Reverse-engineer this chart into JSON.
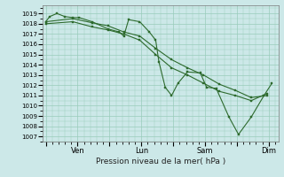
{
  "background_color": "#cce8e8",
  "grid_color": "#99ccbb",
  "line_color": "#2d6a2d",
  "marker_color": "#2d6a2d",
  "title": "Pression niveau de la mer( hPa )",
  "ylim": [
    1006.5,
    1019.8
  ],
  "yticks": [
    1007,
    1008,
    1009,
    1010,
    1011,
    1012,
    1013,
    1014,
    1015,
    1016,
    1017,
    1018,
    1019
  ],
  "xtick_labels": [
    "",
    "Ven",
    "",
    "Lun",
    "",
    "Sam",
    "",
    "Dim"
  ],
  "xtick_positions": [
    0,
    1,
    2,
    3,
    4,
    5,
    6,
    7
  ],
  "xlim": [
    -0.1,
    7.3
  ],
  "series": [
    {
      "x": [
        0.0,
        0.12,
        0.35,
        0.6,
        0.85,
        1.05,
        1.45,
        1.95,
        2.3,
        2.45,
        2.6,
        2.95,
        3.25,
        3.45,
        3.55,
        3.75,
        3.95,
        4.15,
        4.45,
        4.85,
        5.05,
        5.35,
        5.75,
        6.05,
        6.45,
        6.85,
        7.1
      ],
      "y": [
        1018.2,
        1018.7,
        1019.0,
        1018.7,
        1018.6,
        1018.6,
        1018.2,
        1017.5,
        1017.2,
        1016.8,
        1018.4,
        1018.2,
        1017.2,
        1016.4,
        1014.3,
        1011.8,
        1011.0,
        1012.2,
        1013.3,
        1013.2,
        1011.8,
        1011.7,
        1008.9,
        1007.2,
        1008.9,
        1011.0,
        1012.2
      ]
    },
    {
      "x": [
        0.0,
        0.85,
        1.45,
        1.95,
        2.45,
        2.95,
        3.45,
        3.95,
        4.45,
        4.95,
        5.45,
        5.95,
        6.45,
        6.95
      ],
      "y": [
        1018.2,
        1018.5,
        1018.1,
        1017.8,
        1017.2,
        1016.8,
        1015.6,
        1014.5,
        1013.7,
        1013.0,
        1012.1,
        1011.5,
        1010.8,
        1011.0
      ]
    },
    {
      "x": [
        0.0,
        0.85,
        1.45,
        1.95,
        2.45,
        2.95,
        3.45,
        3.95,
        4.45,
        4.95,
        5.45,
        5.95,
        6.45,
        6.95
      ],
      "y": [
        1018.0,
        1018.2,
        1017.7,
        1017.4,
        1017.0,
        1016.4,
        1015.0,
        1013.7,
        1013.0,
        1012.2,
        1011.4,
        1011.0,
        1010.5,
        1011.2
      ]
    }
  ]
}
